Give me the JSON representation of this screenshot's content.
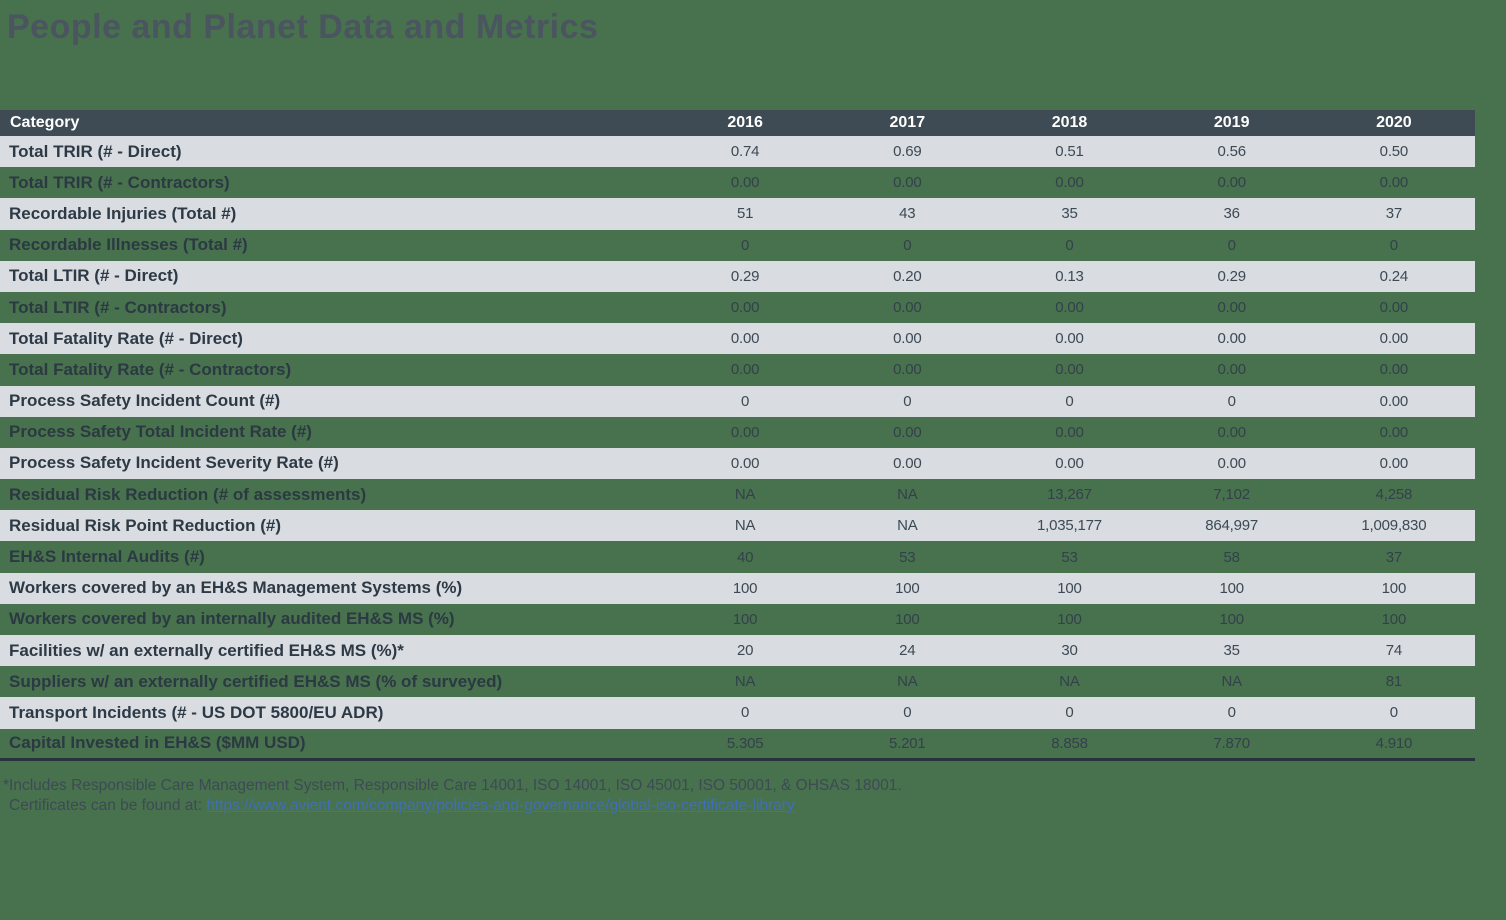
{
  "page": {
    "title": "People and Planet Data and Metrics",
    "background_color": "#48714E",
    "header_bar_color": "#3E4B54",
    "light_row_color": "#D9DCE1",
    "dark_text_color": "#2D3A45"
  },
  "table": {
    "header": {
      "category_label": "Category",
      "years": [
        "2016",
        "2017",
        "2018",
        "2019",
        "2020"
      ]
    },
    "rows": [
      {
        "label": "Total TRIR (# - Direct)",
        "values": [
          "0.74",
          "0.69",
          "0.51",
          "0.56",
          "0.50"
        ]
      },
      {
        "label": "Total TRIR (# - Contractors)",
        "values": [
          "0.00",
          "0.00",
          "0.00",
          "0.00",
          "0.00"
        ]
      },
      {
        "label": "Recordable Injuries (Total #)",
        "values": [
          "51",
          "43",
          "35",
          "36",
          "37"
        ]
      },
      {
        "label": "Recordable Illnesses (Total #)",
        "values": [
          "0",
          "0",
          "0",
          "0",
          "0"
        ]
      },
      {
        "label": "Total LTIR (# - Direct)",
        "values": [
          "0.29",
          "0.20",
          "0.13",
          "0.29",
          "0.24"
        ]
      },
      {
        "label": "Total LTIR (# - Contractors)",
        "values": [
          "0.00",
          "0.00",
          "0.00",
          "0.00",
          "0.00"
        ]
      },
      {
        "label": "Total Fatality Rate (# - Direct)",
        "values": [
          "0.00",
          "0.00",
          "0.00",
          "0.00",
          "0.00"
        ]
      },
      {
        "label": "Total Fatality Rate (# - Contractors)",
        "values": [
          "0.00",
          "0.00",
          "0.00",
          "0.00",
          "0.00"
        ]
      },
      {
        "label": "Process Safety Incident Count (#)",
        "values": [
          "0",
          "0",
          "0",
          "0",
          "0.00"
        ]
      },
      {
        "label": "Process Safety Total Incident Rate (#)",
        "values": [
          "0.00",
          "0.00",
          "0.00",
          "0.00",
          "0.00"
        ]
      },
      {
        "label": "Process Safety Incident Severity Rate (#)",
        "values": [
          "0.00",
          "0.00",
          "0.00",
          "0.00",
          "0.00"
        ]
      },
      {
        "label": "Residual Risk Reduction (# of assessments)",
        "values": [
          "NA",
          "NA",
          "13,267",
          "7,102",
          "4,258"
        ]
      },
      {
        "label": "Residual Risk Point Reduction (#)",
        "values": [
          "NA",
          "NA",
          "1,035,177",
          "864,997",
          "1,009,830"
        ]
      },
      {
        "label": "EH&S Internal Audits (#)",
        "values": [
          "40",
          "53",
          "53",
          "58",
          "37"
        ]
      },
      {
        "label": "Workers covered by an EH&S Management Systems (%)",
        "values": [
          "100",
          "100",
          "100",
          "100",
          "100"
        ]
      },
      {
        "label": "Workers covered by an internally audited EH&S MS (%)",
        "values": [
          "100",
          "100",
          "100",
          "100",
          "100"
        ]
      },
      {
        "label": "Facilities w/ an externally certified EH&S MS (%)*",
        "values": [
          "20",
          "24",
          "30",
          "35",
          "74"
        ]
      },
      {
        "label": "Suppliers w/ an externally certified EH&S MS (% of surveyed)",
        "values": [
          "NA",
          "NA",
          "NA",
          "NA",
          "81"
        ]
      },
      {
        "label": "Transport Incidents (# - US DOT 5800/EU ADR)",
        "values": [
          "0",
          "0",
          "0",
          "0",
          "0"
        ]
      },
      {
        "label": "Capital Invested in EH&S ($MM USD)",
        "values": [
          "5.305",
          "5.201",
          "8.858",
          "7.870",
          "4.910"
        ]
      }
    ]
  },
  "footnote": {
    "line1": "*Includes Responsible Care Management System, Responsible Care 14001, ISO 14001, ISO 45001, ISO 50001, & OHSAS 18001.",
    "line2_prefix": "Certificates can be found at: ",
    "link_text": "https://www.avient.com/company/policies-and-governance/global-iso-certificate-library",
    "link_color": "#3F6FB5"
  }
}
